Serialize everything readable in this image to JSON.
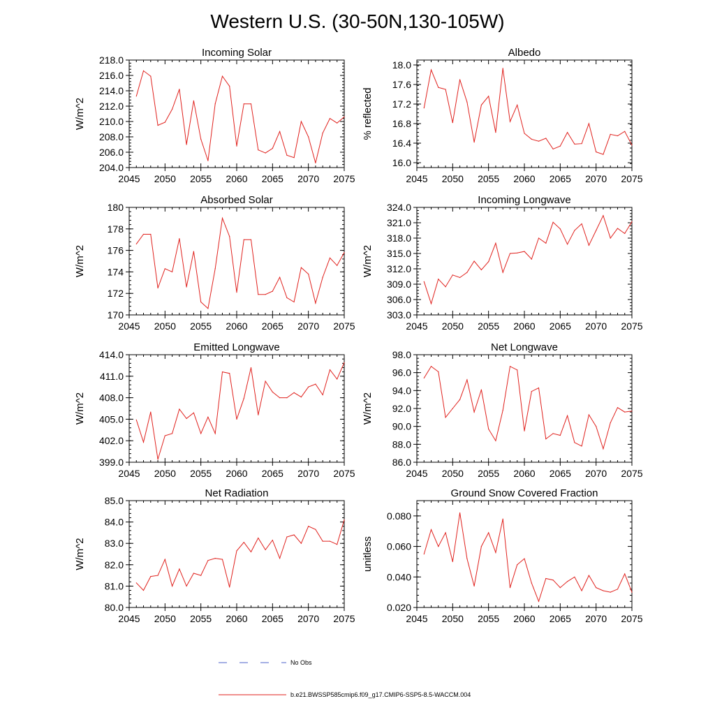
{
  "figure": {
    "title": "Western U.S. (30-50N,130-105W)",
    "legend": {
      "obs_label": "No Obs",
      "obs_color": "#4b5fc8",
      "model_label": "b.e21.BWSSP585cmip6.f09_g17.CMIP6-SSP5-8.5-WACCM.004",
      "model_color": "#e0211d"
    }
  },
  "chart_data": [
    {
      "type": "line",
      "title": "Incoming Solar",
      "ylabel": "W/m^2",
      "xlabel": "",
      "xlim": [
        2045,
        2075
      ],
      "ylim": [
        204.0,
        218.0
      ],
      "xticks": [
        2045,
        2050,
        2055,
        2060,
        2065,
        2070,
        2075
      ],
      "yticks": [
        204.0,
        206.0,
        208.0,
        210.0,
        212.0,
        214.0,
        216.0,
        218.0
      ],
      "ytick_labels": [
        "204.0",
        "206.0",
        "208.0",
        "210.0",
        "212.0",
        "214.0",
        "216.0",
        "218.0"
      ],
      "x": [
        2046,
        2047,
        2048,
        2049,
        2050,
        2051,
        2052,
        2053,
        2054,
        2055,
        2056,
        2057,
        2058,
        2059,
        2060,
        2061,
        2062,
        2063,
        2064,
        2065,
        2066,
        2067,
        2068,
        2069,
        2070,
        2071,
        2072,
        2073,
        2074,
        2075
      ],
      "series": [
        {
          "name": "b.e21.BWSSP585cmip6.f09_g17.CMIP6-SSP5-8.5-WACCM.004",
          "color": "#e0211d",
          "values": [
            213.3,
            216.6,
            215.9,
            209.5,
            209.9,
            211.6,
            214.2,
            207.0,
            212.7,
            207.7,
            204.9,
            212.3,
            215.9,
            214.6,
            206.8,
            212.3,
            212.3,
            206.3,
            205.9,
            206.5,
            208.7,
            205.6,
            205.3,
            210.0,
            208.0,
            204.6,
            208.5,
            210.4,
            209.8,
            210.6
          ]
        }
      ]
    },
    {
      "type": "line",
      "title": "Albedo",
      "ylabel": "% reflected",
      "xlabel": "",
      "xlim": [
        2045,
        2075
      ],
      "ylim": [
        15.9,
        18.1
      ],
      "xticks": [
        2045,
        2050,
        2055,
        2060,
        2065,
        2070,
        2075
      ],
      "yticks": [
        16.0,
        16.4,
        16.8,
        17.2,
        17.6,
        18.0
      ],
      "ytick_labels": [
        "16.0",
        "16.4",
        "16.8",
        "17.2",
        "17.6",
        "18.0"
      ],
      "x": [
        2046,
        2047,
        2048,
        2049,
        2050,
        2051,
        2052,
        2053,
        2054,
        2055,
        2056,
        2057,
        2058,
        2059,
        2060,
        2061,
        2062,
        2063,
        2064,
        2065,
        2066,
        2067,
        2068,
        2069,
        2070,
        2071,
        2072,
        2073,
        2074,
        2075
      ],
      "series": [
        {
          "name": "b.e21.BWSSP585cmip6.f09_g17.CMIP6-SSP5-8.5-WACCM.004",
          "color": "#e0211d",
          "values": [
            17.12,
            17.9,
            17.54,
            17.5,
            16.82,
            17.7,
            17.24,
            16.42,
            17.18,
            17.36,
            16.62,
            17.93,
            16.84,
            17.18,
            16.6,
            16.48,
            16.44,
            16.5,
            16.28,
            16.34,
            16.62,
            16.38,
            16.39,
            16.8,
            16.22,
            16.17,
            16.58,
            16.55,
            16.64,
            16.36
          ]
        }
      ]
    },
    {
      "type": "line",
      "title": "Absorbed Solar",
      "ylabel": "W/m^2",
      "xlabel": "",
      "xlim": [
        2045,
        2075
      ],
      "ylim": [
        170.0,
        180.0
      ],
      "xticks": [
        2045,
        2050,
        2055,
        2060,
        2065,
        2070,
        2075
      ],
      "yticks": [
        170,
        172,
        174,
        176,
        178,
        180
      ],
      "ytick_labels": [
        "170",
        "172",
        "174",
        "176",
        "178",
        "180"
      ],
      "x": [
        2046,
        2047,
        2048,
        2049,
        2050,
        2051,
        2052,
        2053,
        2054,
        2055,
        2056,
        2057,
        2058,
        2059,
        2060,
        2061,
        2062,
        2063,
        2064,
        2065,
        2066,
        2067,
        2068,
        2069,
        2070,
        2071,
        2072,
        2073,
        2074,
        2075
      ],
      "series": [
        {
          "name": "b.e21.BWSSP585cmip6.f09_g17.CMIP6-SSP5-8.5-WACCM.004",
          "color": "#e0211d",
          "values": [
            176.6,
            177.5,
            177.5,
            172.5,
            174.3,
            174.0,
            177.1,
            172.6,
            175.9,
            171.2,
            170.6,
            174.3,
            179.0,
            177.3,
            172.1,
            177.0,
            177.0,
            171.9,
            171.9,
            172.2,
            173.5,
            171.6,
            171.2,
            174.4,
            173.8,
            171.1,
            173.5,
            175.3,
            174.6,
            175.8
          ]
        }
      ]
    },
    {
      "type": "line",
      "title": "Incoming Longwave",
      "ylabel": "W/m^2",
      "xlabel": "",
      "xlim": [
        2045,
        2075
      ],
      "ylim": [
        303.0,
        324.0
      ],
      "xticks": [
        2045,
        2050,
        2055,
        2060,
        2065,
        2070,
        2075
      ],
      "yticks": [
        303.0,
        306.0,
        309.0,
        312.0,
        315.0,
        318.0,
        321.0,
        324.0
      ],
      "ytick_labels": [
        "303.0",
        "306.0",
        "309.0",
        "312.0",
        "315.0",
        "318.0",
        "321.0",
        "324.0"
      ],
      "x": [
        2046,
        2047,
        2048,
        2049,
        2050,
        2051,
        2052,
        2053,
        2054,
        2055,
        2056,
        2057,
        2058,
        2059,
        2060,
        2061,
        2062,
        2063,
        2064,
        2065,
        2066,
        2067,
        2068,
        2069,
        2070,
        2071,
        2072,
        2073,
        2074,
        2075
      ],
      "series": [
        {
          "name": "b.e21.BWSSP585cmip6.f09_g17.CMIP6-SSP5-8.5-WACCM.004",
          "color": "#e0211d",
          "values": [
            309.5,
            305.2,
            310.0,
            308.5,
            310.8,
            310.3,
            311.3,
            313.5,
            311.8,
            313.4,
            317.0,
            311.3,
            315.0,
            315.1,
            315.4,
            313.9,
            318.0,
            317.0,
            321.1,
            319.8,
            316.8,
            319.5,
            320.8,
            316.6,
            319.5,
            322.4,
            318.0,
            319.9,
            318.9,
            321.2
          ]
        }
      ]
    },
    {
      "type": "line",
      "title": "Emitted Longwave",
      "ylabel": "W/m^2",
      "xlabel": "",
      "xlim": [
        2045,
        2075
      ],
      "ylim": [
        399.0,
        414.0
      ],
      "xticks": [
        2045,
        2050,
        2055,
        2060,
        2065,
        2070,
        2075
      ],
      "yticks": [
        399.0,
        402.0,
        405.0,
        408.0,
        411.0,
        414.0
      ],
      "ytick_labels": [
        "399.0",
        "402.0",
        "405.0",
        "408.0",
        "411.0",
        "414.0"
      ],
      "x": [
        2046,
        2047,
        2048,
        2049,
        2050,
        2051,
        2052,
        2053,
        2054,
        2055,
        2056,
        2057,
        2058,
        2059,
        2060,
        2061,
        2062,
        2063,
        2064,
        2065,
        2066,
        2067,
        2068,
        2069,
        2070,
        2071,
        2072,
        2073,
        2074,
        2075
      ],
      "series": [
        {
          "name": "b.e21.BWSSP585cmip6.f09_g17.CMIP6-SSP5-8.5-WACCM.004",
          "color": "#e0211d",
          "values": [
            404.9,
            401.8,
            406.0,
            399.4,
            402.7,
            403.0,
            406.4,
            405.1,
            405.9,
            403.0,
            405.3,
            403.0,
            411.6,
            411.4,
            405.0,
            407.9,
            412.2,
            405.6,
            410.3,
            408.8,
            408.0,
            408.0,
            408.7,
            408.1,
            409.5,
            409.9,
            408.4,
            411.9,
            410.6,
            412.9
          ]
        }
      ]
    },
    {
      "type": "line",
      "title": "Net Longwave",
      "ylabel": "W/m^2",
      "xlabel": "",
      "xlim": [
        2045,
        2075
      ],
      "ylim": [
        86.0,
        98.0
      ],
      "xticks": [
        2045,
        2050,
        2055,
        2060,
        2065,
        2070,
        2075
      ],
      "yticks": [
        86.0,
        88.0,
        90.0,
        92.0,
        94.0,
        96.0,
        98.0
      ],
      "ytick_labels": [
        "86.0",
        "88.0",
        "90.0",
        "92.0",
        "94.0",
        "96.0",
        "98.0"
      ],
      "x": [
        2046,
        2047,
        2048,
        2049,
        2050,
        2051,
        2052,
        2053,
        2054,
        2055,
        2056,
        2057,
        2058,
        2059,
        2060,
        2061,
        2062,
        2063,
        2064,
        2065,
        2066,
        2067,
        2068,
        2069,
        2070,
        2071,
        2072,
        2073,
        2074,
        2075
      ],
      "series": [
        {
          "name": "b.e21.BWSSP585cmip6.f09_g17.CMIP6-SSP5-8.5-WACCM.004",
          "color": "#e0211d",
          "values": [
            95.4,
            96.7,
            96.1,
            91.0,
            92.0,
            93.0,
            95.2,
            91.6,
            94.1,
            89.7,
            88.4,
            91.8,
            96.7,
            96.3,
            89.5,
            93.9,
            94.3,
            88.6,
            89.2,
            89.0,
            91.2,
            88.2,
            87.8,
            91.3,
            90.0,
            87.5,
            90.4,
            92.1,
            91.6,
            91.7
          ]
        }
      ]
    },
    {
      "type": "line",
      "title": "Net Radiation",
      "ylabel": "W/m^2",
      "xlabel": "",
      "xlim": [
        2045,
        2075
      ],
      "ylim": [
        80.0,
        85.0
      ],
      "xticks": [
        2045,
        2050,
        2055,
        2060,
        2065,
        2070,
        2075
      ],
      "yticks": [
        80.0,
        81.0,
        82.0,
        83.0,
        84.0,
        85.0
      ],
      "ytick_labels": [
        "80.0",
        "81.0",
        "82.0",
        "83.0",
        "84.0",
        "85.0"
      ],
      "x": [
        2046,
        2047,
        2048,
        2049,
        2050,
        2051,
        2052,
        2053,
        2054,
        2055,
        2056,
        2057,
        2058,
        2059,
        2060,
        2061,
        2062,
        2063,
        2064,
        2065,
        2066,
        2067,
        2068,
        2069,
        2070,
        2071,
        2072,
        2073,
        2074,
        2075
      ],
      "series": [
        {
          "name": "b.e21.BWSSP585cmip6.f09_g17.CMIP6-SSP5-8.5-WACCM.004",
          "color": "#e0211d",
          "values": [
            81.15,
            80.8,
            81.45,
            81.5,
            82.25,
            81.0,
            81.8,
            81.0,
            81.6,
            81.5,
            82.2,
            82.3,
            82.25,
            80.95,
            82.65,
            83.05,
            82.6,
            83.25,
            82.7,
            83.15,
            82.3,
            83.3,
            83.4,
            83.0,
            83.8,
            83.65,
            83.1,
            83.1,
            82.95,
            84.1
          ]
        }
      ]
    },
    {
      "type": "line",
      "title": "Ground Snow Covered Fraction",
      "ylabel": "unitless",
      "xlabel": "",
      "xlim": [
        2045,
        2075
      ],
      "ylim": [
        0.02,
        0.09
      ],
      "xticks": [
        2045,
        2050,
        2055,
        2060,
        2065,
        2070,
        2075
      ],
      "yticks": [
        0.02,
        0.04,
        0.06,
        0.08
      ],
      "ytick_labels": [
        "0.020",
        "0.040",
        "0.060",
        "0.080"
      ],
      "x": [
        2046,
        2047,
        2048,
        2049,
        2050,
        2051,
        2052,
        2053,
        2054,
        2055,
        2056,
        2057,
        2058,
        2059,
        2060,
        2061,
        2062,
        2063,
        2064,
        2065,
        2066,
        2067,
        2068,
        2069,
        2070,
        2071,
        2072,
        2073,
        2074,
        2075
      ],
      "series": [
        {
          "name": "b.e21.BWSSP585cmip6.f09_g17.CMIP6-SSP5-8.5-WACCM.004",
          "color": "#e0211d",
          "values": [
            0.055,
            0.071,
            0.06,
            0.069,
            0.05,
            0.082,
            0.052,
            0.034,
            0.06,
            0.069,
            0.056,
            0.078,
            0.033,
            0.048,
            0.052,
            0.036,
            0.024,
            0.039,
            0.038,
            0.033,
            0.037,
            0.04,
            0.031,
            0.041,
            0.033,
            0.031,
            0.03,
            0.032,
            0.042,
            0.03
          ]
        }
      ]
    }
  ]
}
